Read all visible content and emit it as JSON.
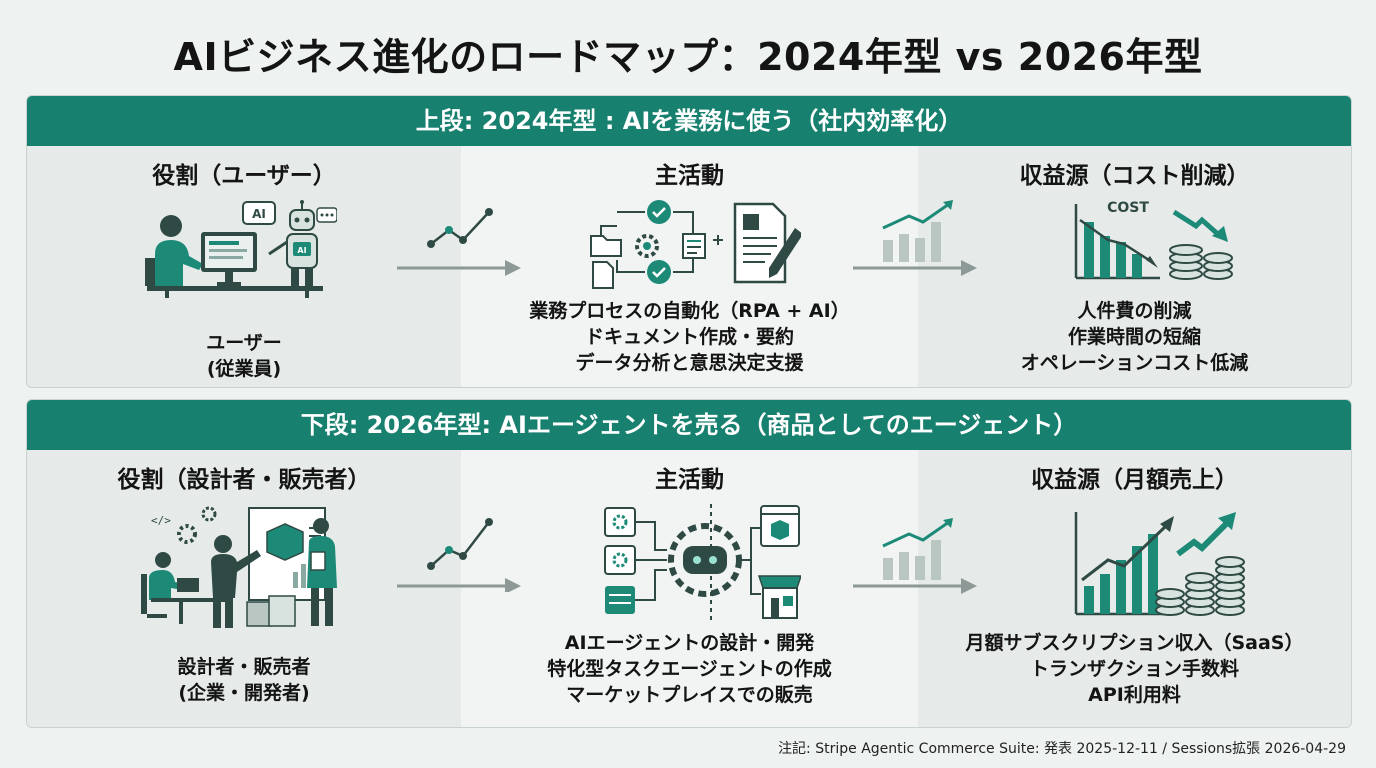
{
  "title": "AIビジネス進化のロードマップ：2024年型 vs 2026年型",
  "colors": {
    "accent": "#17806f",
    "icon_dark": "#2f4a44",
    "icon_teal": "#1d8a78",
    "arrow_grey": "#8c9996"
  },
  "top": {
    "banner": "上段: 2024年型 : AIを業務に使う（社内効率化）",
    "role": {
      "heading": "役割（ユーザー）",
      "lines": [
        "ユーザー",
        "(従業員)"
      ]
    },
    "activity": {
      "heading": "主活動",
      "lines": [
        "業務プロセスの自動化（RPA + AI）",
        "ドキュメント作成・要約",
        "データ分析と意思決定支援"
      ]
    },
    "revenue": {
      "heading": "収益源（コスト削減）",
      "lines": [
        "人件費の削減",
        "作業時間の短縮",
        "オペレーションコスト低減"
      ]
    },
    "illustration_labels": {
      "ai_bubble": "AI",
      "robot_badge": "AI",
      "cost_label": "COST"
    }
  },
  "bottom": {
    "banner": "下段: 2026年型: AIエージェントを売る（商品としてのエージェント）",
    "role": {
      "heading": "役割（設計者・販売者）",
      "lines": [
        "設計者・販売者",
        "(企業・開発者)"
      ]
    },
    "activity": {
      "heading": "主活動",
      "lines": [
        "AIエージェントの設計・開発",
        "特化型タスクエージェントの作成",
        "マーケットプレイスでの販売"
      ]
    },
    "revenue": {
      "heading": "収益源（月額売上）",
      "lines": [
        "月額サブスクリプション収入（SaaS）",
        "トランザクション手数料",
        "API利用料"
      ]
    },
    "illustration_labels": {
      "code_icon": "</>"
    }
  },
  "footnote": "注記: Stripe Agentic Commerce Suite: 発表 2025-12-11 / Sessions拡張 2026-04-29"
}
